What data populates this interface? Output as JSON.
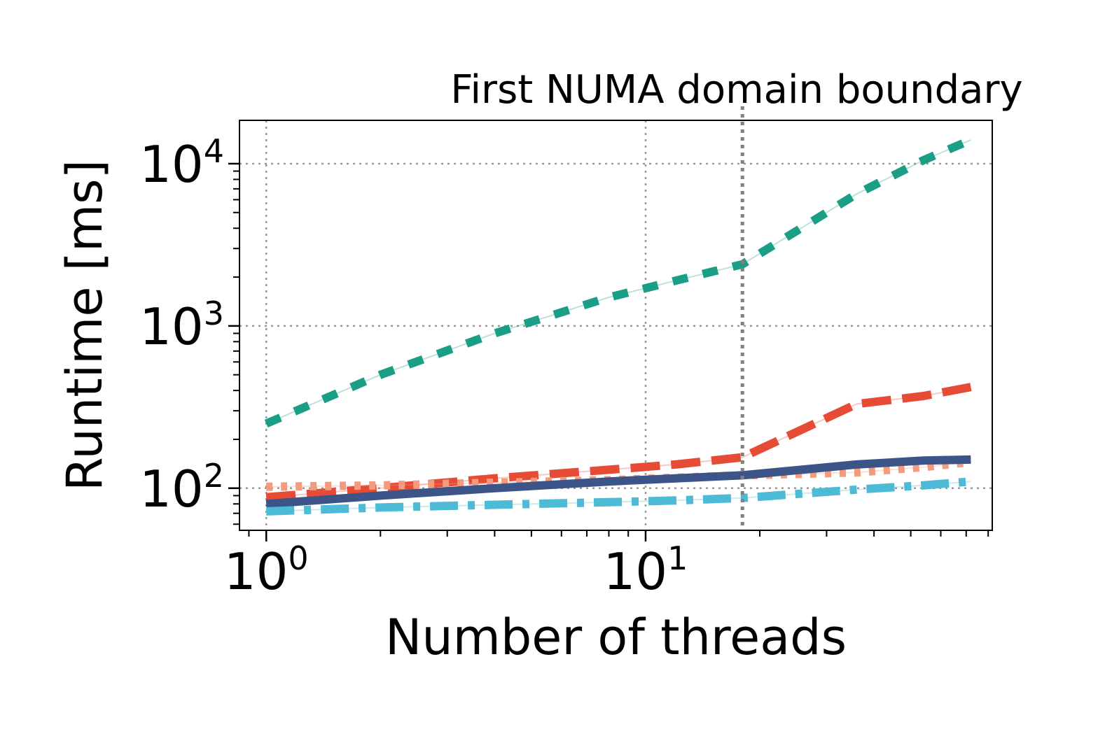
{
  "chart_data": {
    "type": "line",
    "title": "",
    "xlabel": "Number of threads",
    "ylabel": "Runtime [ms]",
    "xscale": "log",
    "yscale": "log",
    "xlim": [
      0.85,
      82
    ],
    "ylim": [
      55,
      18500
    ],
    "grid": true,
    "x_ticks": [
      {
        "value": 1,
        "base": "10",
        "exp": "0"
      },
      {
        "value": 10,
        "base": "10",
        "exp": "1"
      }
    ],
    "y_ticks": [
      {
        "value": 100,
        "base": "10",
        "exp": "2"
      },
      {
        "value": 1000,
        "base": "10",
        "exp": "3"
      },
      {
        "value": 10000,
        "base": "10",
        "exp": "4"
      }
    ],
    "annotation": {
      "text": "First NUMA domain boundary",
      "x": 18
    },
    "x": [
      1,
      2,
      4,
      8,
      12,
      18,
      36,
      54,
      72
    ],
    "series": [
      {
        "color": "#1a9e86",
        "style": "dashed-short",
        "values": [
          250,
          500,
          900,
          1500,
          1900,
          2400,
          6500,
          10500,
          14000
        ]
      },
      {
        "color": "#e64b35",
        "style": "dashed-long",
        "values": [
          88,
          100,
          115,
          130,
          140,
          155,
          330,
          370,
          420
        ]
      },
      {
        "color": "#f39b7f",
        "style": "dotted",
        "values": [
          102,
          104,
          108,
          112,
          116,
          120,
          125,
          135,
          145
        ]
      },
      {
        "color": "#3c5488",
        "style": "solid",
        "values": [
          80,
          90,
          100,
          110,
          115,
          120,
          140,
          148,
          150
        ]
      },
      {
        "color": "#4dbbd5",
        "style": "dash-dot",
        "values": [
          72,
          76,
          79,
          82,
          84,
          87,
          98,
          104,
          110
        ]
      }
    ]
  }
}
